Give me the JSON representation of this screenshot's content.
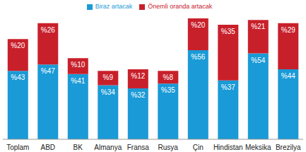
{
  "chart_data": {
    "type": "bar",
    "stacked": true,
    "data_labels": true,
    "tick_labels": "x",
    "grid": false,
    "legend": "top",
    "categories": [
      "Toplam",
      "ABD",
      "BK",
      "Almanya",
      "Fransa",
      "Rusya",
      "Çin",
      "Hindistan",
      "Meksika",
      "Brezilya"
    ],
    "series": [
      {
        "name": "Biraz artacak",
        "color": "#1a9ad6",
        "values": [
          43,
          47,
          41,
          34,
          32,
          35,
          56,
          37,
          54,
          44
        ],
        "value_labels": [
          "%43",
          "%47",
          "%41",
          "%34",
          "%32",
          "%35",
          "%56",
          "%37",
          "%54",
          "%44"
        ]
      },
      {
        "name": "Önemli oranda artacak",
        "color": "#c8202b",
        "values": [
          20,
          26,
          10,
          9,
          12,
          8,
          20,
          35,
          21,
          29
        ],
        "value_labels": [
          "%20",
          "%26",
          "%10",
          "%9",
          "%12",
          "%8",
          "%20",
          "%35",
          "%21",
          "%29"
        ]
      }
    ]
  }
}
